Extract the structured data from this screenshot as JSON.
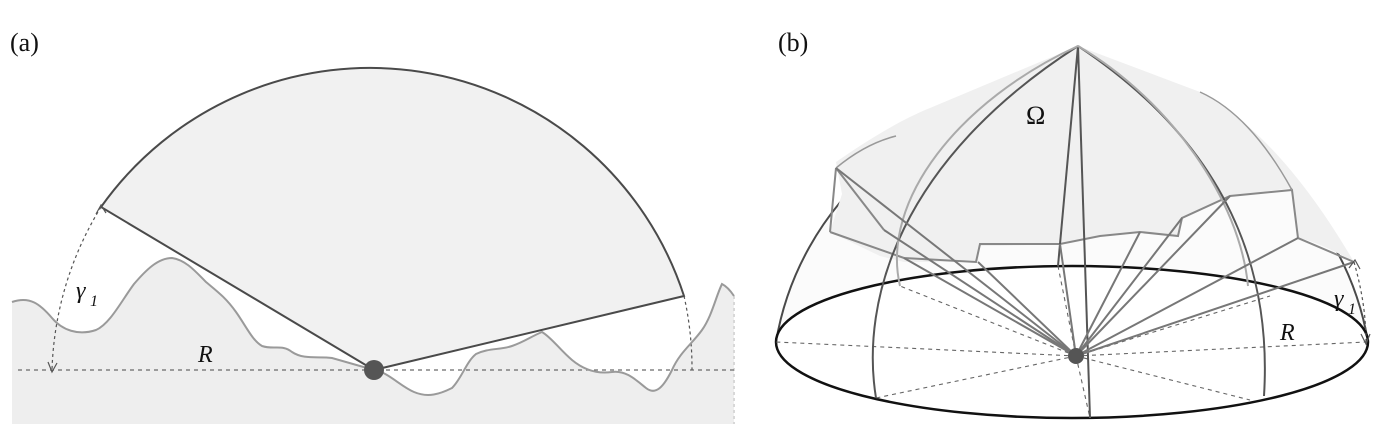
{
  "panel_a": {
    "label": "(a)",
    "angle_label": "γ",
    "angle_subscript": "1",
    "radius_label": "R"
  },
  "panel_b": {
    "label": "(b)",
    "solid_angle_label": "Ω",
    "angle_label": "γ",
    "angle_subscript": "1",
    "radius_label": "R"
  },
  "colors": {
    "sector_fill": "#f1f1f1",
    "ground_fill": "#eeeeee",
    "outline": "#4a4a4a",
    "terrain": "#9a9a9a",
    "dashed": "#6a6a6a",
    "observer": "#555555"
  }
}
